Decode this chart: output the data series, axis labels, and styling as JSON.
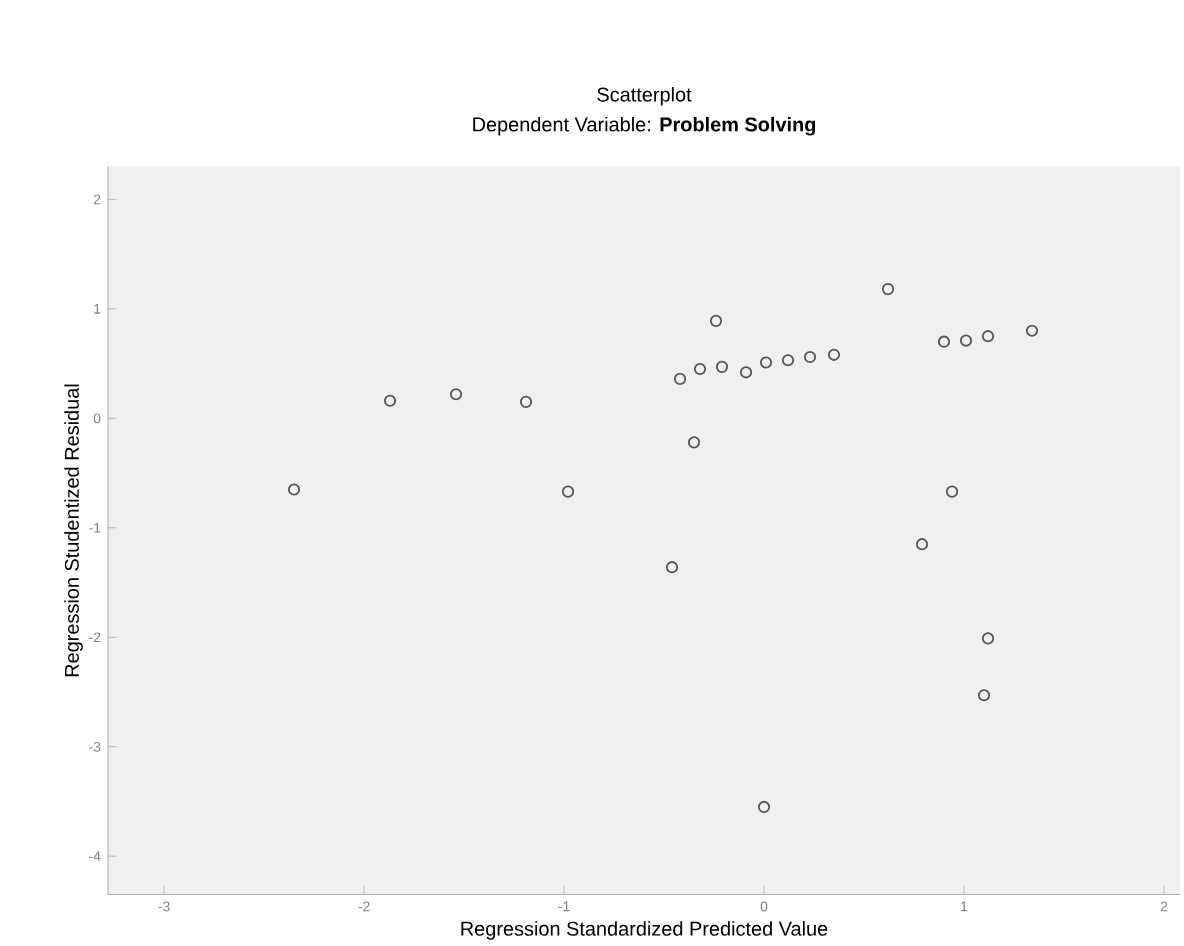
{
  "chart_data": {
    "type": "scatter",
    "title": "Scatterplot",
    "subtitle": "Dependent Variable: **Problem Solving**",
    "xlabel": "Regression Standardized Predicted Value",
    "ylabel": "Regression Studentized Residual",
    "x": [
      -2.35,
      -1.87,
      -1.54,
      -1.19,
      -0.98,
      -0.46,
      -0.42,
      -0.35,
      -0.32,
      -0.24,
      -0.21,
      -0.09,
      0.01,
      0.12,
      0.23,
      0.35,
      0.62,
      0.9,
      1.01,
      1.12,
      1.34,
      0.94,
      0.79,
      1.12,
      1.1,
      0.0
    ],
    "values": [
      -0.65,
      0.16,
      0.22,
      0.15,
      -0.67,
      -1.36,
      0.36,
      -0.22,
      0.45,
      0.89,
      0.47,
      0.42,
      0.51,
      0.53,
      0.56,
      0.58,
      1.18,
      0.7,
      0.71,
      0.75,
      0.8,
      -0.67,
      -1.15,
      -2.01,
      -2.53,
      -3.55
    ],
    "color": "#555555",
    "marker": "circle",
    "xlim": [
      -3.28,
      2.08
    ],
    "ylim": [
      -4.35,
      2.3
    ],
    "xticks": [
      -3,
      -2,
      -1,
      0,
      1,
      2
    ],
    "yticks": [
      -4,
      -3,
      -2,
      -1,
      0,
      1,
      2
    ]
  }
}
